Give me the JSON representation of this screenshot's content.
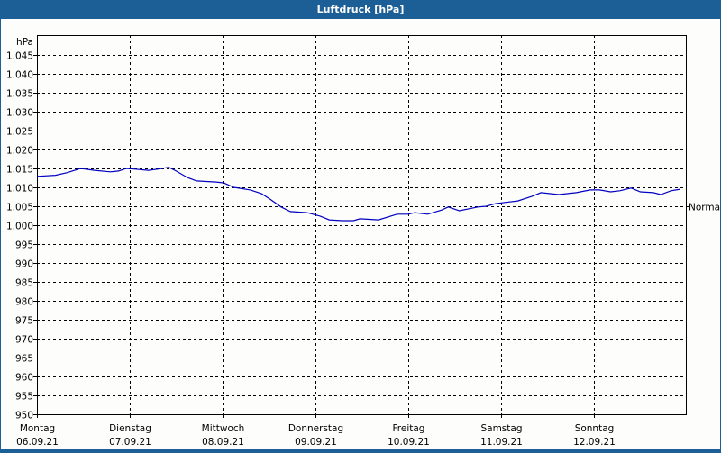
{
  "window": {
    "title": "Luftdruck [hPa]"
  },
  "colors": {
    "frame": "#1c5f96",
    "background": "#fdfdfb",
    "line": "#0000c0",
    "grid": "#000000"
  },
  "chart_data": {
    "type": "line",
    "title": "Luftdruck [hPa]",
    "ylabel": "hPa",
    "xlabel": "",
    "ylim": [
      950,
      1050
    ],
    "yticks": [
      950,
      955,
      960,
      965,
      970,
      975,
      980,
      985,
      990,
      995,
      1000,
      1005,
      1010,
      1015,
      1020,
      1025,
      1030,
      1035,
      1040,
      1045
    ],
    "ytick_labels": [
      "950",
      "955",
      "960",
      "965",
      "970",
      "975",
      "980",
      "985",
      "990",
      "995",
      "1.000",
      "1.005",
      "1.010",
      "1.015",
      "1.020",
      "1.025",
      "1.030",
      "1.035",
      "1.040",
      "1.045"
    ],
    "xlim_days": [
      0,
      6.99
    ],
    "xticks": [
      {
        "day": "Montag",
        "date": "06.09.21"
      },
      {
        "day": "Dienstag",
        "date": "07.09.21"
      },
      {
        "day": "Mittwoch",
        "date": "08.09.21"
      },
      {
        "day": "Donnerstag",
        "date": "09.09.21"
      },
      {
        "day": "Freitag",
        "date": "10.09.21"
      },
      {
        "day": "Samstag",
        "date": "11.09.21"
      },
      {
        "day": "Sonntag",
        "date": "12.09.21"
      }
    ],
    "grid": true,
    "annotations": [
      {
        "text": "Normal",
        "value": 1005,
        "position": "right"
      }
    ],
    "series": [
      {
        "name": "Luftdruck",
        "x_days": [
          0,
          0.2,
          0.33,
          0.38,
          0.47,
          0.62,
          0.79,
          0.88,
          0.96,
          1.06,
          1.2,
          1.3,
          1.42,
          1.5,
          1.62,
          1.72,
          1.93,
          2.01,
          2.12,
          2.3,
          2.42,
          2.51,
          2.63,
          2.73,
          2.91,
          3.05,
          3.15,
          3.29,
          3.41,
          3.48,
          3.68,
          3.88,
          4.0,
          4.07,
          4.21,
          4.36,
          4.43,
          4.55,
          4.75,
          4.84,
          4.94,
          5.04,
          5.18,
          5.33,
          5.43,
          5.62,
          5.81,
          5.96,
          6.06,
          6.18,
          6.28,
          6.4,
          6.5,
          6.64,
          6.72,
          6.83,
          6.93
        ],
        "values": [
          1012.9,
          1013.2,
          1013.9,
          1014.3,
          1015.0,
          1014.5,
          1014.1,
          1014.3,
          1015.0,
          1014.8,
          1014.5,
          1014.8,
          1015.3,
          1014.3,
          1012.6,
          1011.7,
          1011.4,
          1011.2,
          1010.0,
          1009.3,
          1008.3,
          1006.9,
          1004.8,
          1003.6,
          1003.3,
          1002.4,
          1001.4,
          1001.2,
          1001.2,
          1001.7,
          1001.4,
          1002.9,
          1002.9,
          1003.3,
          1002.9,
          1004.0,
          1004.8,
          1003.8,
          1004.8,
          1005.0,
          1005.7,
          1006.0,
          1006.4,
          1007.6,
          1008.6,
          1008.1,
          1008.6,
          1009.3,
          1009.3,
          1008.8,
          1009.1,
          1009.8,
          1008.8,
          1008.6,
          1008.1,
          1009.1,
          1009.5
        ]
      }
    ]
  }
}
